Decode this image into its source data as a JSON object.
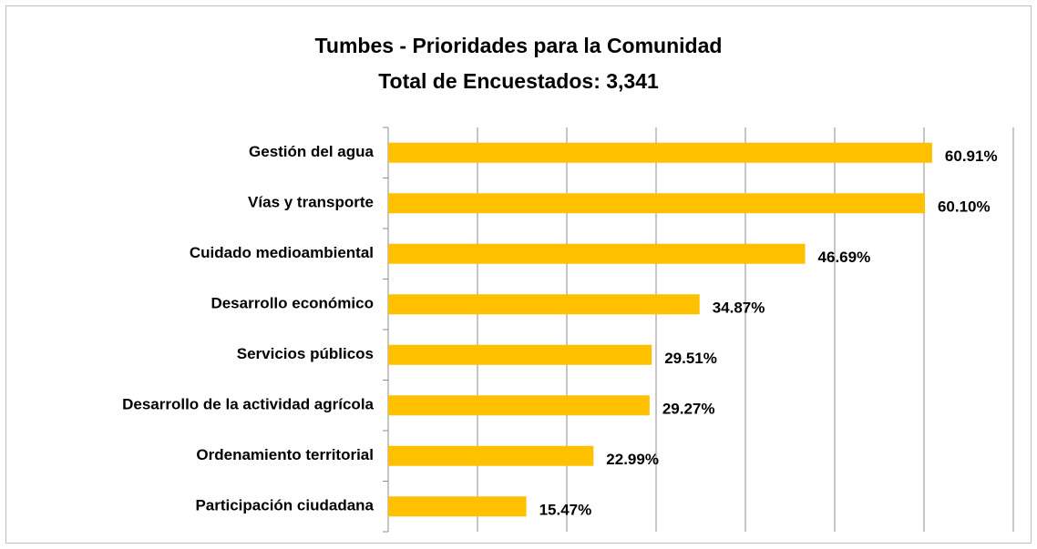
{
  "chart_data": {
    "type": "bar",
    "orientation": "horizontal",
    "title": "Tumbes - Prioridades para la Comunidad",
    "subtitle": "Total de Encuestados: 3,341",
    "categories": [
      "Gestión del agua",
      "Vías y transporte",
      "Cuidado medioambiental",
      "Desarrollo económico",
      "Servicios públicos",
      "Desarrollo de la actividad agrícola",
      "Ordenamiento territorial",
      "Participación ciudadana"
    ],
    "values": [
      60.91,
      60.1,
      46.69,
      34.87,
      29.51,
      29.27,
      22.99,
      15.47
    ],
    "value_labels": [
      "60.91%",
      "60.10%",
      "46.69%",
      "34.87%",
      "29.51%",
      "29.27%",
      "22.99%",
      "15.47%"
    ],
    "color": "#ffc000",
    "xlim": [
      0,
      70
    ],
    "xticks": [
      0,
      10,
      20,
      30,
      40,
      50,
      60,
      70
    ],
    "grid": true
  }
}
